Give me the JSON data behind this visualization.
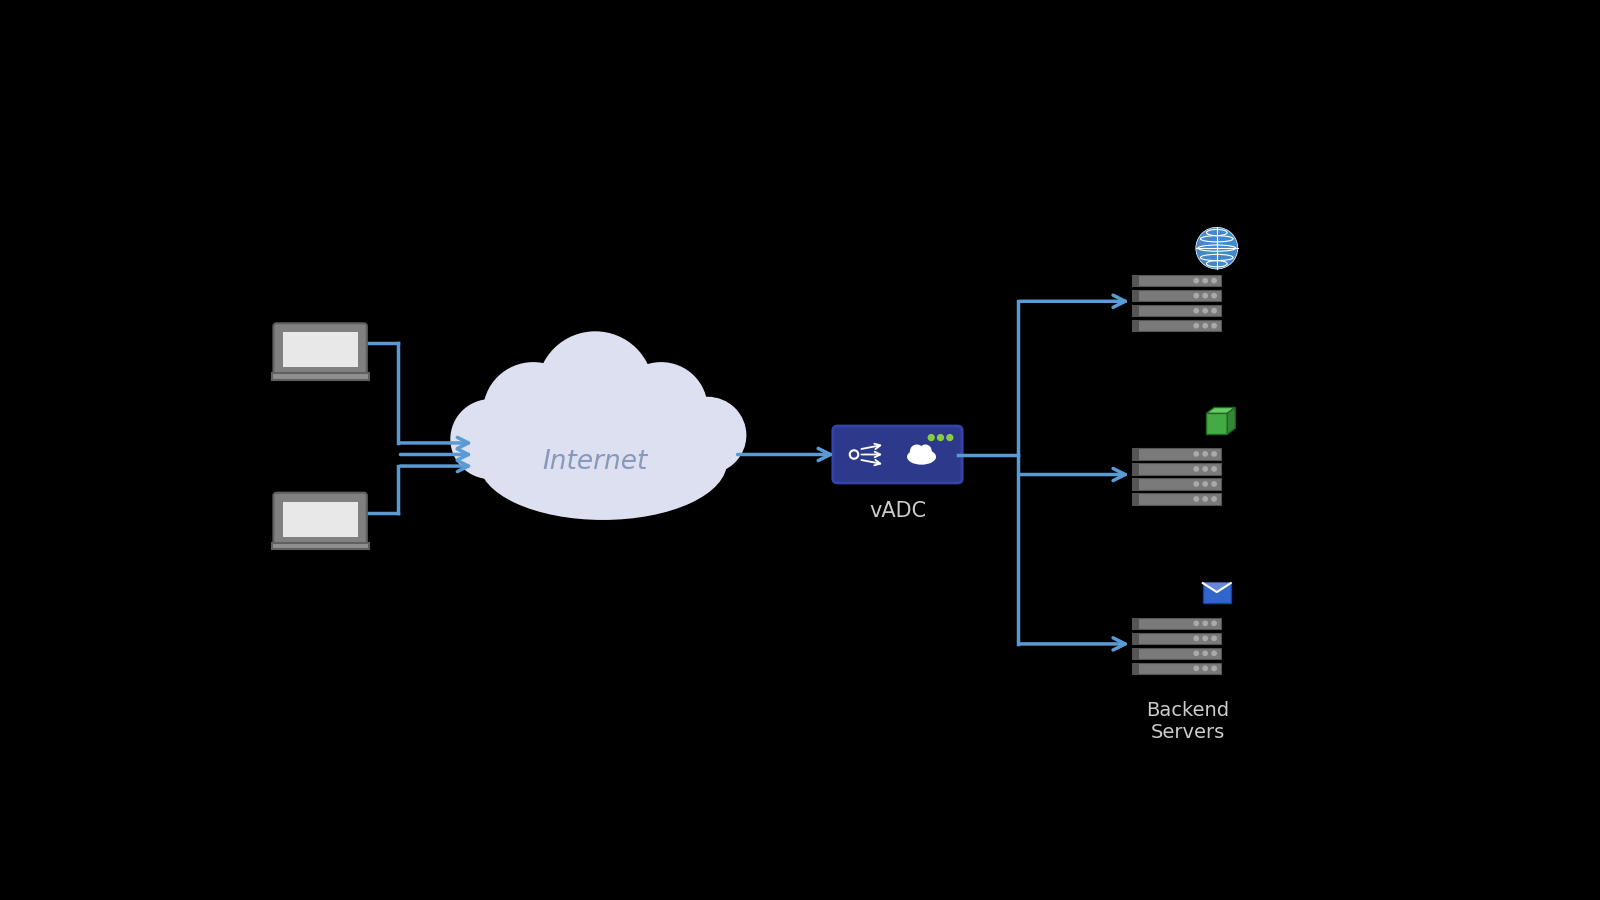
{
  "background_color": "#000000",
  "arrow_color": "#5b9bd5",
  "cloud_fill": "#dde0f0",
  "vadc_bg": "#2d3a8c",
  "server_colors": [
    "#808080",
    "#757575",
    "#6e6e6e",
    "#686868"
  ],
  "server_edge": "#555555",
  "dot_color": "#aaaaaa",
  "text_color": "#ffffff",
  "label_color": "#cccccc",
  "internet_text": "Internet",
  "vadc_label": "vADC",
  "backend_label": "Backend\nServers",
  "globe_blue": "#4488cc",
  "globe_teal": "#3399cc",
  "box_green_front": "#44aa44",
  "box_green_top": "#55bb55",
  "box_green_right": "#338833",
  "mail_blue": "#3366cc",
  "vadc_dot_color": "#88cc44",
  "laptop_body": "#808080",
  "laptop_screen": "#e8e8e8",
  "laptop_base_color": "#909090"
}
